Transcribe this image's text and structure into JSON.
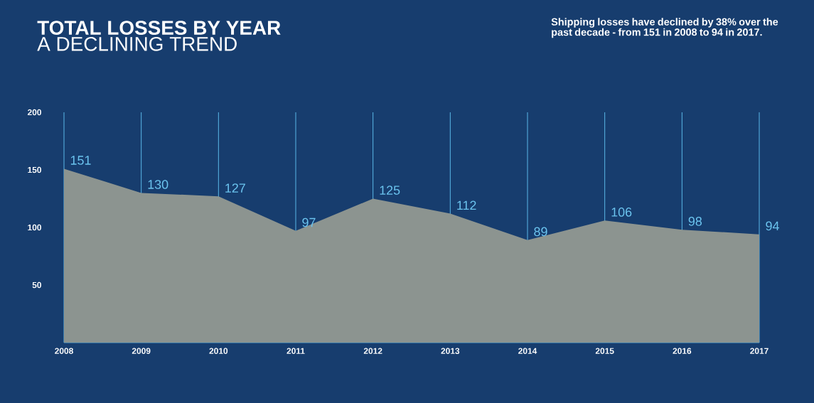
{
  "chart_data": {
    "type": "area",
    "title": "TOTAL LOSSES BY YEAR",
    "subtitle": "A DECLINING TREND",
    "annotations": [
      "Shipping losses have declined by 38% over the past decade - from 151 in 2008 to 94 in 2017."
    ],
    "x": [
      2008,
      2009,
      2010,
      2011,
      2012,
      2013,
      2014,
      2015,
      2016,
      2017
    ],
    "values": [
      151,
      130,
      127,
      97,
      125,
      112,
      89,
      106,
      98,
      94
    ],
    "color": "#8c9490",
    "xlim": [
      2008,
      2017
    ],
    "ylim": [
      0,
      200
    ],
    "xticks": [
      2008,
      2009,
      2010,
      2011,
      2012,
      2013,
      2014,
      2015,
      2016,
      2017
    ],
    "yticks": [
      50,
      100,
      150,
      200
    ],
    "grid": "x",
    "data_labels": true
  }
}
